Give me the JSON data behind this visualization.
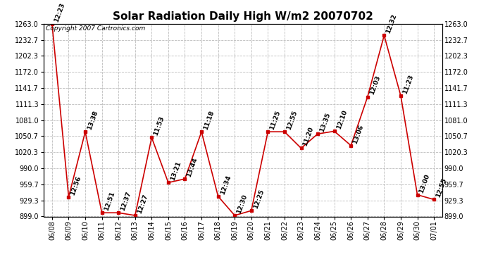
{
  "title": "Solar Radiation Daily High W/m2 20070702",
  "copyright": "Copyright 2007 Cartronics.com",
  "dates": [
    "06/08",
    "06/09",
    "06/10",
    "06/11",
    "06/12",
    "06/13",
    "06/14",
    "06/15",
    "06/16",
    "06/17",
    "06/18",
    "06/19",
    "06/20",
    "06/21",
    "06/22",
    "06/23",
    "06/24",
    "06/25",
    "06/26",
    "06/27",
    "06/28",
    "06/29",
    "06/30",
    "07/01"
  ],
  "values": [
    1263.0,
    936.0,
    1059.0,
    906.0,
    906.0,
    901.0,
    1048.0,
    963.0,
    970.0,
    1059.0,
    937.0,
    901.0,
    910.0,
    1059.0,
    1059.0,
    1028.0,
    1055.0,
    1060.0,
    1033.0,
    1125.0,
    1241.0,
    1127.0,
    940.0,
    931.0
  ],
  "labels": [
    "12:23",
    "12:56",
    "13:38",
    "12:51",
    "12:37",
    "12:27",
    "11:53",
    "13:21",
    "13:44",
    "11:18",
    "12:34",
    "12:30",
    "12:25",
    "11:25",
    "12:55",
    "11:20",
    "13:35",
    "12:10",
    "13:06",
    "12:03",
    "12:32",
    "11:23",
    "13:00",
    "12:55"
  ],
  "ylim_min": 899.0,
  "ylim_max": 1263.0,
  "yticks": [
    899.0,
    929.3,
    959.7,
    990.0,
    1020.3,
    1050.7,
    1081.0,
    1111.3,
    1141.7,
    1172.0,
    1202.3,
    1232.7,
    1263.0
  ],
  "line_color": "#cc0000",
  "marker_color": "#cc0000",
  "bg_color": "#ffffff",
  "grid_color": "#bbbbbb",
  "title_fontsize": 11,
  "label_fontsize": 6.5,
  "tick_fontsize": 7,
  "copyright_fontsize": 6.5
}
